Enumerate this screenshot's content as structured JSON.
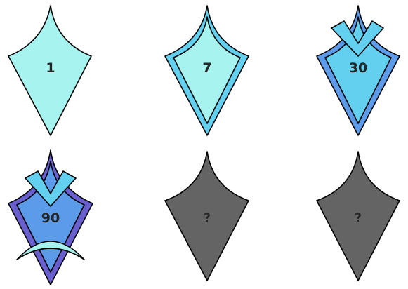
{
  "palette": {
    "light_cyan": "#a6f3ef",
    "sky_blue": "#62d0ee",
    "mid_blue": "#5b9bea",
    "violet": "#6a5fcf",
    "locked_gray": "#646464"
  },
  "badges": [
    {
      "label": "1",
      "tier": "plain-diamond",
      "locked": false
    },
    {
      "label": "7",
      "tier": "double-border",
      "locked": false
    },
    {
      "label": "30",
      "tier": "chevron",
      "locked": false
    },
    {
      "label": "90",
      "tier": "chevron-and-arc",
      "locked": false
    },
    {
      "label": "?",
      "tier": "unknown",
      "locked": true
    },
    {
      "label": "?",
      "tier": "unknown",
      "locked": true
    }
  ]
}
